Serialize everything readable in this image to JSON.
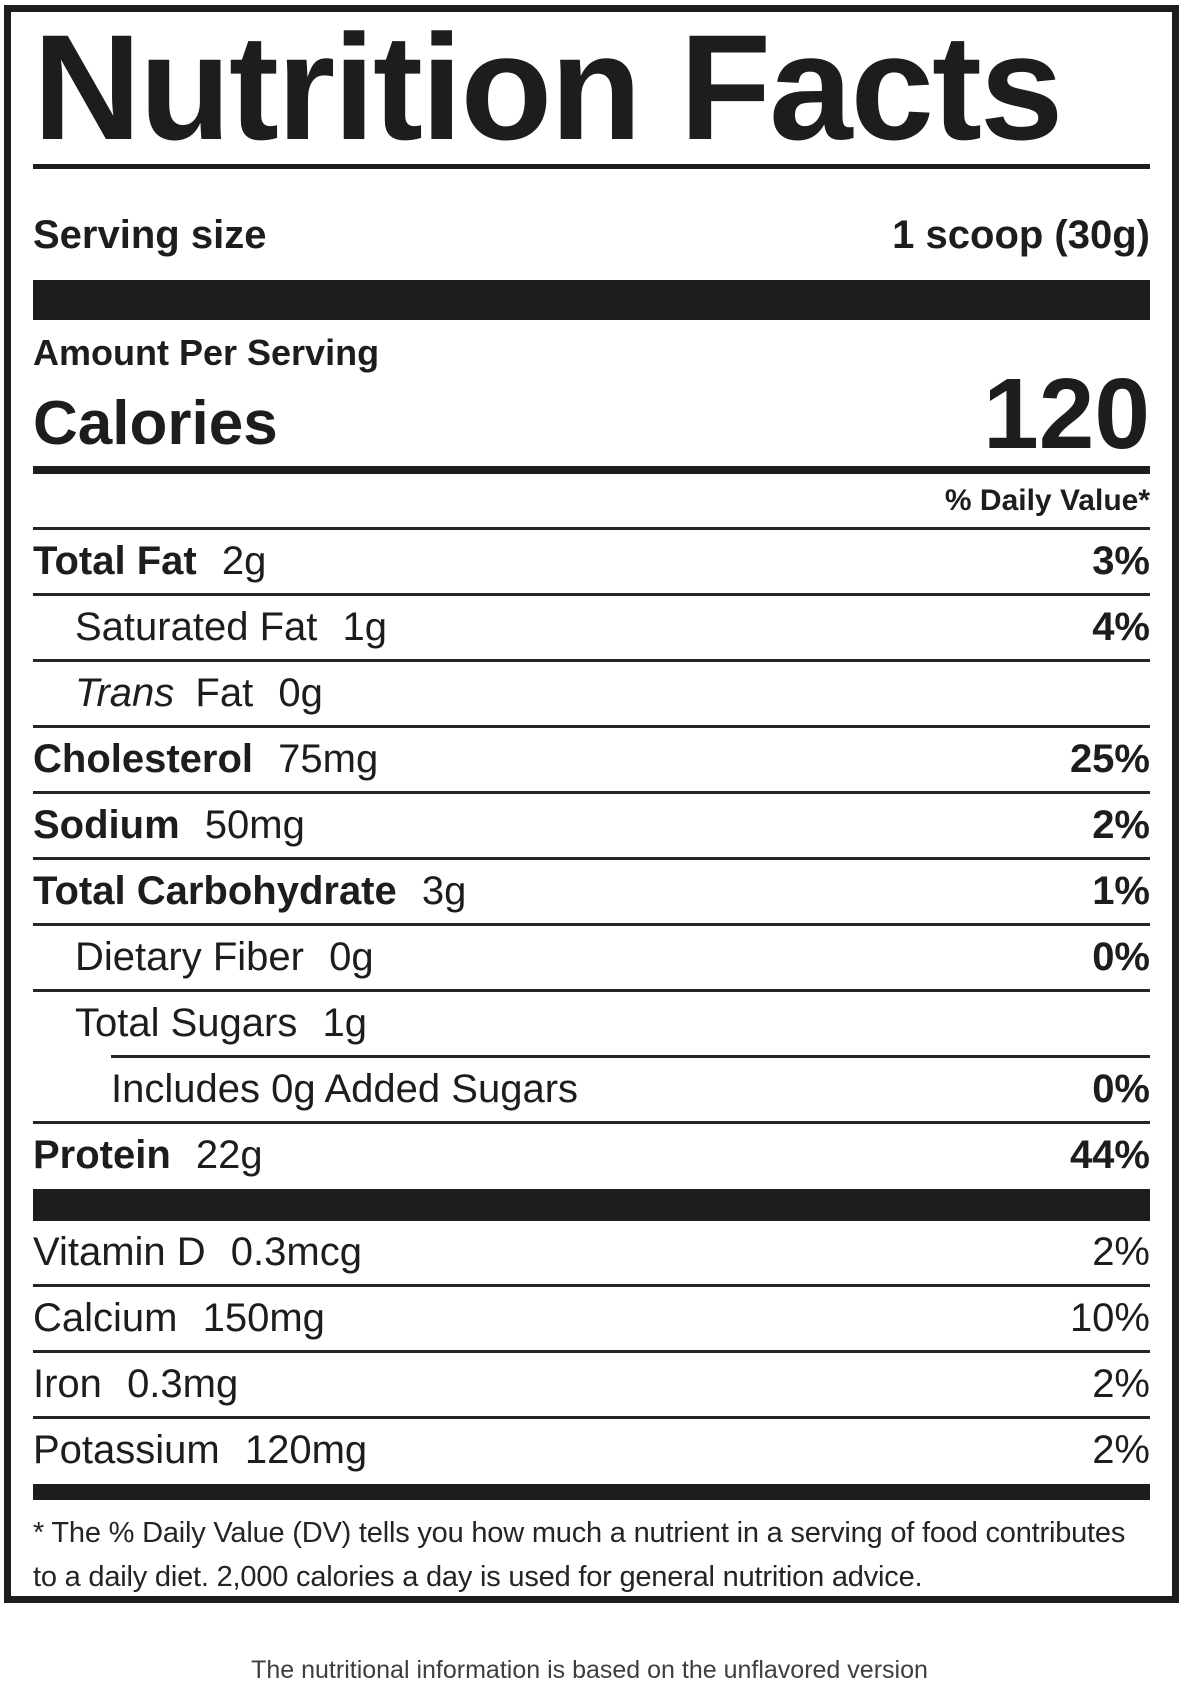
{
  "title": "Nutrition Facts",
  "serving": {
    "label": "Serving size",
    "value": "1 scoop (30g)"
  },
  "amount_per_serving": "Amount Per Serving",
  "calories": {
    "label": "Calories",
    "value": "120"
  },
  "daily_value_header": "% Daily Value*",
  "nutrients": [
    {
      "name": "Total Fat",
      "amount": "2g",
      "dv": "3%"
    },
    {
      "name": "Saturated Fat",
      "amount": "1g",
      "dv": "4%"
    },
    {
      "name_i": "Trans",
      "name": "Fat",
      "amount": "0g",
      "dv": ""
    },
    {
      "name": "Cholesterol",
      "amount": "75mg",
      "dv": "25%"
    },
    {
      "name": "Sodium",
      "amount": "50mg",
      "dv": "2%"
    },
    {
      "name": "Total Carbohydrate",
      "amount": "3g",
      "dv": "1%"
    },
    {
      "name": "Dietary Fiber",
      "amount": "0g",
      "dv": "0%"
    },
    {
      "name": "Total Sugars",
      "amount": "1g",
      "dv": ""
    },
    {
      "name": "Includes 0g Added Sugars",
      "amount": "",
      "dv": "0%"
    },
    {
      "name": "Protein",
      "amount": "22g",
      "dv": "44%"
    }
  ],
  "micronutrients": [
    {
      "name": "Vitamin D",
      "amount": "0.3mcg",
      "dv": "2%"
    },
    {
      "name": "Calcium",
      "amount": "150mg",
      "dv": "10%"
    },
    {
      "name": "Iron",
      "amount": "0.3mg",
      "dv": "2%"
    },
    {
      "name": "Potassium",
      "amount": "120mg",
      "dv": "2%"
    }
  ],
  "footnote": "* The % Daily Value (DV) tells you how much a nutrient in a serving of food contributes to a daily diet. 2,000 calories a day is used for general nutrition advice.",
  "caption": "The nutritional information is based on the unflavored version",
  "colors": {
    "ink": "#1d1d1d",
    "caption_text": "#3e3e3e"
  }
}
